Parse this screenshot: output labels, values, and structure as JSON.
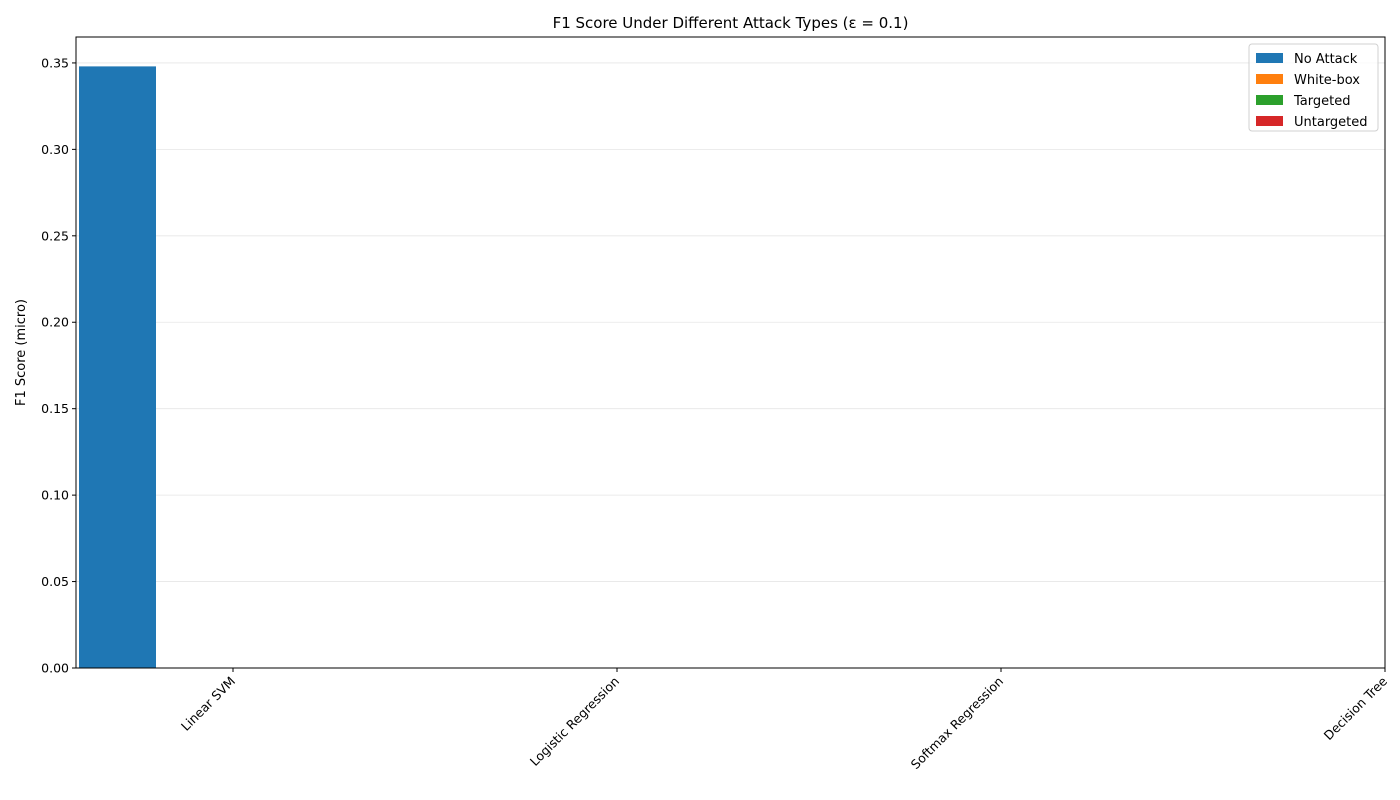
{
  "chart_data": {
    "type": "bar",
    "title": "F1 Score Under Different Attack Types (ε = 0.1)",
    "xlabel": "",
    "ylabel": "F1 Score (micro)",
    "categories": [
      "Linear SVM",
      "Logistic Regression",
      "Softmax Regression",
      "Decision Tree"
    ],
    "series": [
      {
        "name": "No Attack",
        "color": "#1f77b4",
        "values": [
          0.348,
          0,
          0,
          0
        ]
      },
      {
        "name": "White-box",
        "color": "#ff7f0e",
        "values": [
          0,
          0,
          0,
          0
        ]
      },
      {
        "name": "Targeted",
        "color": "#2ca02c",
        "values": [
          0,
          0,
          0,
          0
        ]
      },
      {
        "name": "Untargeted",
        "color": "#d62728",
        "values": [
          0,
          0,
          0,
          0
        ]
      }
    ],
    "ylim": [
      0,
      0.365
    ],
    "yticks": [
      "0.00",
      "0.05",
      "0.10",
      "0.15",
      "0.20",
      "0.25",
      "0.30",
      "0.35"
    ],
    "grid": "y",
    "legend_position": "top-right"
  }
}
